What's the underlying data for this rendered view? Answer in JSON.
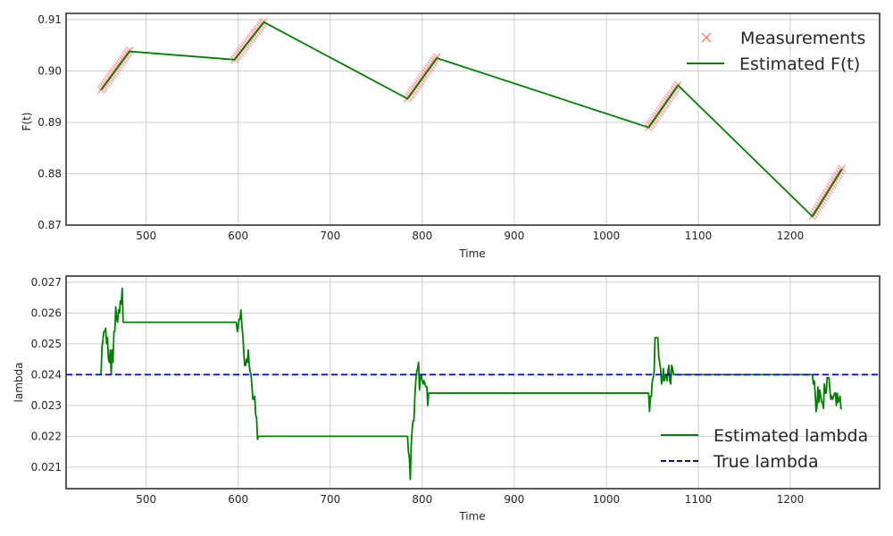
{
  "chart_data": [
    {
      "type": "line",
      "title": "",
      "xlabel": "Time",
      "ylabel": "F(t)",
      "xlim": [
        413,
        1297
      ],
      "ylim": [
        0.87,
        0.9112
      ],
      "xticks": [
        500,
        600,
        700,
        800,
        900,
        1000,
        1100,
        1200
      ],
      "yticks": [
        0.87,
        0.88,
        0.89,
        0.9,
        0.91
      ],
      "ytick_labels": [
        "0.87",
        "0.88",
        "0.89",
        "0.90",
        "0.91"
      ],
      "grid": true,
      "legend_position": "top-right",
      "series": [
        {
          "name": "Measurements",
          "kind": "markers",
          "marker": "x",
          "color": "#ff7f7f",
          "segments": [
            {
              "x_start": 451,
              "x_end": 482,
              "y_start": 0.8963,
              "y_end": 0.904,
              "n": 22
            },
            {
              "x_start": 596,
              "x_end": 628,
              "y_start": 0.9022,
              "y_end": 0.9096,
              "n": 22
            },
            {
              "x_start": 784,
              "x_end": 816,
              "y_start": 0.8946,
              "y_end": 0.9027,
              "n": 22
            },
            {
              "x_start": 1046,
              "x_end": 1078,
              "y_start": 0.889,
              "y_end": 0.8973,
              "n": 22
            },
            {
              "x_start": 1224,
              "x_end": 1256,
              "y_start": 0.8717,
              "y_end": 0.881,
              "n": 22
            }
          ]
        },
        {
          "name": "Estimated F(t)",
          "kind": "line",
          "color": "#008000",
          "x": [
            451,
            482,
            596,
            628,
            784,
            816,
            1046,
            1078,
            1224,
            1256
          ],
          "y": [
            0.8963,
            0.9038,
            0.9022,
            0.9095,
            0.8946,
            0.9025,
            0.889,
            0.8972,
            0.8717,
            0.8809
          ]
        }
      ]
    },
    {
      "type": "line",
      "title": "",
      "xlabel": "Time",
      "ylabel": "lambda",
      "xlim": [
        413,
        1297
      ],
      "ylim": [
        0.0203,
        0.0272
      ],
      "xticks": [
        500,
        600,
        700,
        800,
        900,
        1000,
        1100,
        1200
      ],
      "yticks": [
        0.021,
        0.022,
        0.023,
        0.024,
        0.025,
        0.026,
        0.027
      ],
      "ytick_labels": [
        "0.021",
        "0.022",
        "0.023",
        "0.024",
        "0.025",
        "0.026",
        "0.027"
      ],
      "grid": true,
      "legend_position": "lower-right",
      "series": [
        {
          "name": "Estimated lambda",
          "kind": "line",
          "color": "#008000",
          "x": [
            451,
            452,
            453,
            454,
            455,
            456,
            457,
            458,
            459,
            460,
            461,
            462,
            463,
            464,
            465,
            466,
            467,
            468,
            469,
            470,
            471,
            472,
            473,
            474,
            475,
            476,
            477,
            478,
            479,
            480,
            481,
            482,
            483,
            596,
            597,
            598,
            599,
            600,
            601,
            602,
            603,
            604,
            605,
            606,
            607,
            608,
            609,
            610,
            611,
            612,
            613,
            614,
            615,
            616,
            617,
            618,
            619,
            620,
            621,
            622,
            623,
            624,
            625,
            626,
            627,
            628,
            629,
            784,
            785,
            786,
            787,
            788,
            789,
            790,
            791,
            792,
            793,
            794,
            795,
            796,
            797,
            798,
            799,
            800,
            801,
            802,
            803,
            804,
            805,
            806,
            807,
            808,
            809,
            810,
            811,
            812,
            813,
            814,
            815,
            816,
            817,
            1046,
            1047,
            1048,
            1049,
            1050,
            1051,
            1052,
            1053,
            1054,
            1055,
            1056,
            1057,
            1058,
            1059,
            1060,
            1061,
            1062,
            1063,
            1064,
            1065,
            1066,
            1067,
            1068,
            1069,
            1070,
            1071,
            1072,
            1073,
            1074,
            1075,
            1076,
            1077,
            1078,
            1079,
            1224,
            1225,
            1226,
            1227,
            1228,
            1229,
            1230,
            1231,
            1232,
            1233,
            1234,
            1235,
            1236,
            1237,
            1238,
            1239,
            1240,
            1241,
            1242,
            1243,
            1244,
            1245,
            1246,
            1247,
            1248,
            1249,
            1250,
            1251,
            1252,
            1253,
            1254,
            1255,
            1256
          ],
          "y": [
            0.024,
            0.0249,
            0.0251,
            0.0254,
            0.0254,
            0.0255,
            0.025,
            0.0252,
            0.0245,
            0.0244,
            0.0248,
            0.024,
            0.0248,
            0.0244,
            0.0254,
            0.0254,
            0.0262,
            0.0258,
            0.0257,
            0.0261,
            0.026,
            0.0264,
            0.0263,
            0.0268,
            0.0257,
            0.0257,
            0.0257,
            0.0257,
            0.0257,
            0.0257,
            0.0257,
            0.0257,
            0.0257,
            0.0257,
            0.0257,
            0.0257,
            0.0254,
            0.0255,
            0.0258,
            0.0258,
            0.0261,
            0.0256,
            0.0253,
            0.0248,
            0.0243,
            0.0243,
            0.0245,
            0.0244,
            0.0248,
            0.0243,
            0.0241,
            0.024,
            0.0236,
            0.0232,
            0.0232,
            0.0233,
            0.0227,
            0.0226,
            0.0219,
            0.022,
            0.022,
            0.022,
            0.022,
            0.022,
            0.022,
            0.022,
            0.022,
            0.022,
            0.0215,
            0.0213,
            0.0206,
            0.0217,
            0.0222,
            0.0225,
            0.0225,
            0.0233,
            0.0238,
            0.0241,
            0.0242,
            0.0244,
            0.0235,
            0.0239,
            0.024,
            0.0238,
            0.0237,
            0.0238,
            0.0237,
            0.0236,
            0.0236,
            0.023,
            0.0234,
            0.0234,
            0.0234,
            0.0234,
            0.0234,
            0.0234,
            0.0234,
            0.0234,
            0.0234,
            0.0234,
            0.0234,
            0.0234,
            0.0228,
            0.0233,
            0.0233,
            0.0238,
            0.0239,
            0.0241,
            0.0252,
            0.0252,
            0.0252,
            0.0252,
            0.0246,
            0.0244,
            0.0242,
            0.0237,
            0.0238,
            0.0242,
            0.0238,
            0.024,
            0.024,
            0.0238,
            0.0241,
            0.0243,
            0.0238,
            0.0237,
            0.0243,
            0.0242,
            0.024,
            0.024,
            0.024,
            0.024,
            0.024,
            0.024,
            0.024,
            0.024,
            0.0237,
            0.0238,
            0.0234,
            0.0228,
            0.023,
            0.0236,
            0.0231,
            0.0235,
            0.0233,
            0.0231,
            0.0231,
            0.0229,
            0.0237,
            0.0234,
            0.0234,
            0.0239,
            0.0239,
            0.0239,
            0.0235,
            0.0232,
            0.0233,
            0.0232,
            0.0233,
            0.0234,
            0.0234,
            0.023,
            0.0234,
            0.0231,
            0.0232,
            0.0233,
            0.0229,
            0.0229
          ]
        },
        {
          "name": "True lambda",
          "kind": "line",
          "style": "dashed",
          "color": "#0000cc",
          "x": [
            413,
            1297
          ],
          "y": [
            0.024,
            0.024
          ]
        }
      ]
    }
  ]
}
